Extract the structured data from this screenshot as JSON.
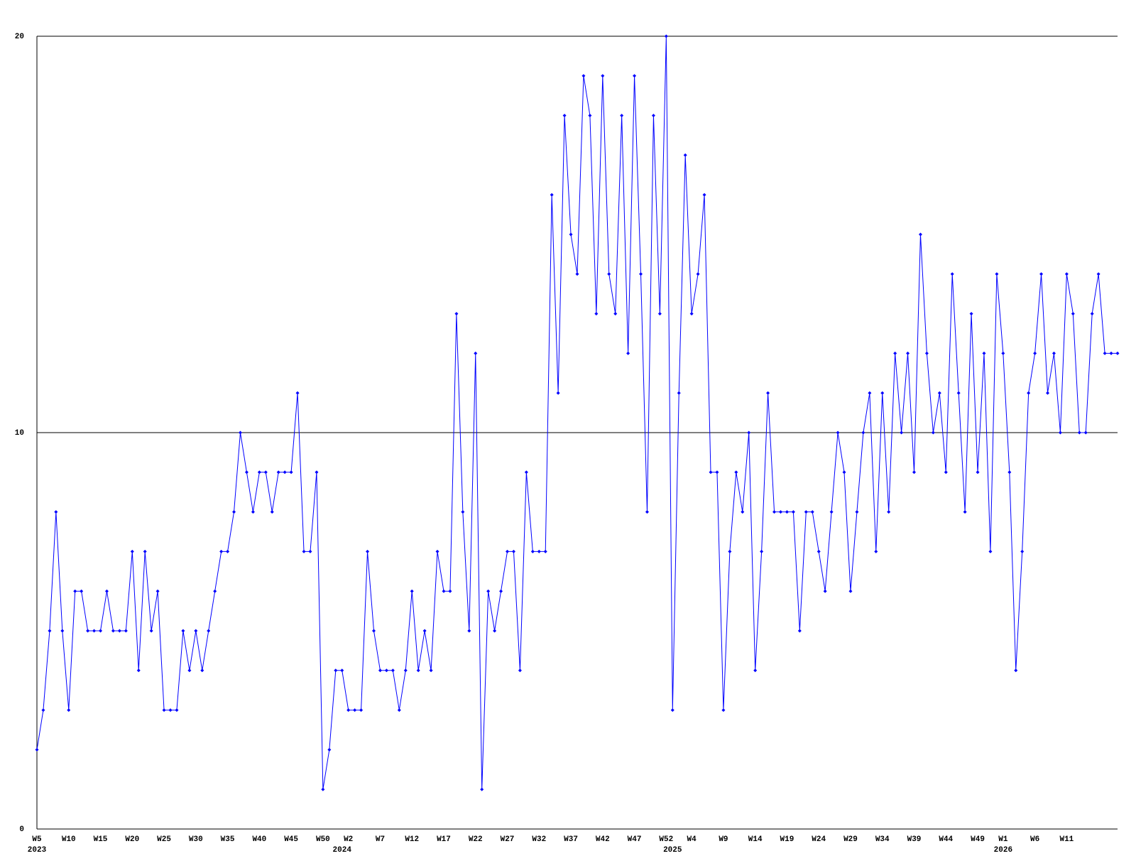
{
  "chart_data": {
    "type": "line",
    "categories": [
      "W5",
      null,
      null,
      null,
      null,
      "W10",
      null,
      null,
      null,
      null,
      "W15",
      null,
      null,
      null,
      null,
      "W20",
      null,
      null,
      null,
      null,
      "W25",
      null,
      null,
      null,
      null,
      "W30",
      null,
      null,
      null,
      null,
      "W35",
      null,
      null,
      null,
      null,
      "W40",
      null,
      null,
      null,
      null,
      "W45",
      null,
      null,
      null,
      null,
      "W50",
      null,
      null,
      null,
      "W2",
      null,
      null,
      null,
      null,
      "W7",
      null,
      null,
      null,
      null,
      "W12",
      null,
      null,
      null,
      null,
      "W17",
      null,
      null,
      null,
      null,
      "W22",
      null,
      null,
      null,
      null,
      "W27",
      null,
      null,
      null,
      null,
      "W32",
      null,
      null,
      null,
      null,
      "W37",
      null,
      null,
      null,
      null,
      "W42",
      null,
      null,
      null,
      null,
      "W47",
      null,
      null,
      null,
      null,
      "W52",
      null,
      null,
      null,
      "W4",
      null,
      null,
      null,
      null,
      "W9",
      null,
      null,
      null,
      null,
      "W14",
      null,
      null,
      null,
      null,
      "W19",
      null,
      null,
      null,
      null,
      "W24",
      null,
      null,
      null,
      null,
      "W29",
      null,
      null,
      null,
      null,
      "W34",
      null,
      null,
      null,
      null,
      "W39",
      null,
      null,
      null,
      null,
      "W44",
      null,
      null,
      null,
      null,
      "W49",
      null,
      null,
      null,
      "W1",
      null,
      null,
      null,
      null,
      "W6",
      null,
      null,
      null,
      null,
      "W11",
      null,
      null,
      null,
      null,
      null,
      null,
      null,
      null
    ],
    "years": [
      "2023",
      null,
      null,
      null,
      null,
      null,
      null,
      null,
      null,
      null,
      null,
      null,
      null,
      null,
      null,
      null,
      null,
      null,
      null,
      null,
      null,
      null,
      null,
      null,
      null,
      null,
      null,
      null,
      null,
      null,
      null,
      null,
      null,
      null,
      null,
      null,
      null,
      null,
      null,
      null,
      null,
      null,
      null,
      null,
      null,
      null,
      null,
      null,
      "2024",
      null,
      null,
      null,
      null,
      null,
      null,
      null,
      null,
      null,
      null,
      null,
      null,
      null,
      null,
      null,
      null,
      null,
      null,
      null,
      null,
      null,
      null,
      null,
      null,
      null,
      null,
      null,
      null,
      null,
      null,
      null,
      null,
      null,
      null,
      null,
      null,
      null,
      null,
      null,
      null,
      null,
      null,
      null,
      null,
      null,
      null,
      null,
      null,
      null,
      null,
      null,
      "2025",
      null,
      null,
      null,
      null,
      null,
      null,
      null,
      null,
      null,
      null,
      null,
      null,
      null,
      null,
      null,
      null,
      null,
      null,
      null,
      null,
      null,
      null,
      null,
      null,
      null,
      null,
      null,
      null,
      null,
      null,
      null,
      null,
      null,
      null,
      null,
      null,
      null,
      null,
      null,
      null,
      null,
      null,
      null,
      null,
      null,
      null,
      null,
      null,
      null,
      null,
      null,
      "2026",
      null,
      null,
      null,
      null,
      null,
      null,
      null,
      null,
      null,
      null,
      null,
      null,
      null,
      null,
      null,
      null,
      null,
      null
    ],
    "series": [
      {
        "color": "#0000ff",
        "values": [
          2,
          3,
          5,
          8,
          5,
          3,
          6,
          6,
          5,
          5,
          5,
          6,
          5,
          5,
          5,
          7,
          4,
          7,
          5,
          6,
          3,
          3,
          3,
          5,
          4,
          5,
          4,
          5,
          6,
          7,
          7,
          8,
          10,
          9,
          8,
          9,
          9,
          8,
          9,
          9,
          9,
          11,
          7,
          7,
          9,
          1,
          2,
          4,
          4,
          3,
          3,
          3,
          7,
          5,
          4,
          4,
          4,
          3,
          4,
          6,
          4,
          5,
          4,
          7,
          6,
          6,
          13,
          8,
          5,
          12,
          1,
          6,
          5,
          6,
          7,
          7,
          4,
          9,
          7,
          7,
          7,
          16,
          11,
          18,
          15,
          14,
          19,
          18,
          13,
          19,
          14,
          13,
          18,
          12,
          19,
          14,
          8,
          18,
          13,
          20,
          3,
          11,
          17,
          13,
          14,
          16,
          9,
          9,
          3,
          7,
          9,
          8,
          10,
          4,
          7,
          11,
          8,
          8,
          8,
          8,
          5,
          8,
          8,
          7,
          6,
          8,
          10,
          9,
          6,
          8,
          10,
          11,
          7,
          11,
          8,
          12,
          10,
          12,
          9,
          15,
          12,
          10,
          11,
          9,
          14,
          11,
          8,
          13,
          9,
          12,
          7,
          14,
          12,
          9,
          4,
          7,
          11,
          12,
          14,
          11,
          12,
          10,
          14,
          13,
          10,
          10,
          13,
          14,
          12,
          12,
          12
        ]
      }
    ],
    "ylim": [
      0,
      20
    ],
    "yticks": [
      0,
      10,
      20
    ],
    "grid": true
  }
}
